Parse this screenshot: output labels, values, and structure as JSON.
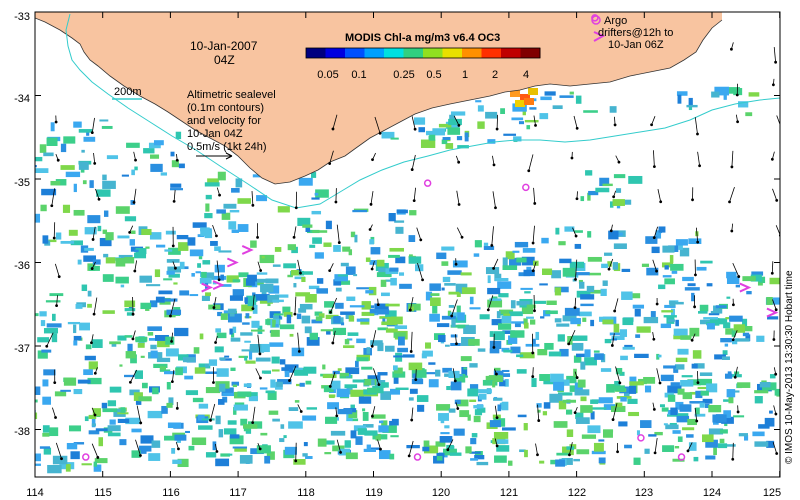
{
  "map": {
    "date_line1": "10-Jan-2007",
    "date_line2": "04Z",
    "isobath_label": "200m",
    "altimetry_lines": [
      "Altimetric sealevel",
      "(0.1m contours)",
      "and velocity for",
      "10-Jan 04Z",
      "0.5m/s (1kt 24h)"
    ],
    "colorbar": {
      "title": "MODIS Chl-a mg/m3 v6.4 OC3",
      "tick_labels": [
        "0.05",
        "0.1",
        "0.25",
        "0.5",
        "1",
        "2",
        "4"
      ]
    },
    "argo_legend": [
      "Argo",
      "drifters@12h to",
      "10-Jan 06Z"
    ],
    "credit": "© IMOS 10-May-2013 13:30:30 Hobart time",
    "axes": {
      "x_ticks": [
        "114",
        "115",
        "116",
        "117",
        "118",
        "119",
        "120",
        "121",
        "122",
        "123",
        "124",
        "125"
      ],
      "y_ticks": [
        "-33",
        "-34",
        "-35",
        "-36",
        "-37",
        "-38"
      ]
    },
    "colors": {
      "land": "#f8c4a0",
      "coastline": "#333333",
      "isobath": "#33cccc",
      "argo": "#e040e0",
      "vector": "#000000"
    },
    "argo_floats": [
      {
        "lon": 114.75,
        "lat": -38.33
      },
      {
        "lon": 119.65,
        "lat": -38.33
      },
      {
        "lon": 119.8,
        "lat": -35.05
      },
      {
        "lon": 121.25,
        "lat": -35.1
      },
      {
        "lon": 122.95,
        "lat": -38.1
      },
      {
        "lon": 123.55,
        "lat": -38.33
      },
      {
        "lon": 122.27,
        "lat": -33.07
      }
    ],
    "argo_tracks": [
      {
        "lon": 116.93,
        "lat": -36.0
      },
      {
        "lon": 116.72,
        "lat": -36.27
      },
      {
        "lon": 116.55,
        "lat": -36.3
      },
      {
        "lon": 117.15,
        "lat": -35.85
      },
      {
        "lon": 124.5,
        "lat": -36.3
      },
      {
        "lon": 124.9,
        "lat": -36.6
      }
    ]
  }
}
